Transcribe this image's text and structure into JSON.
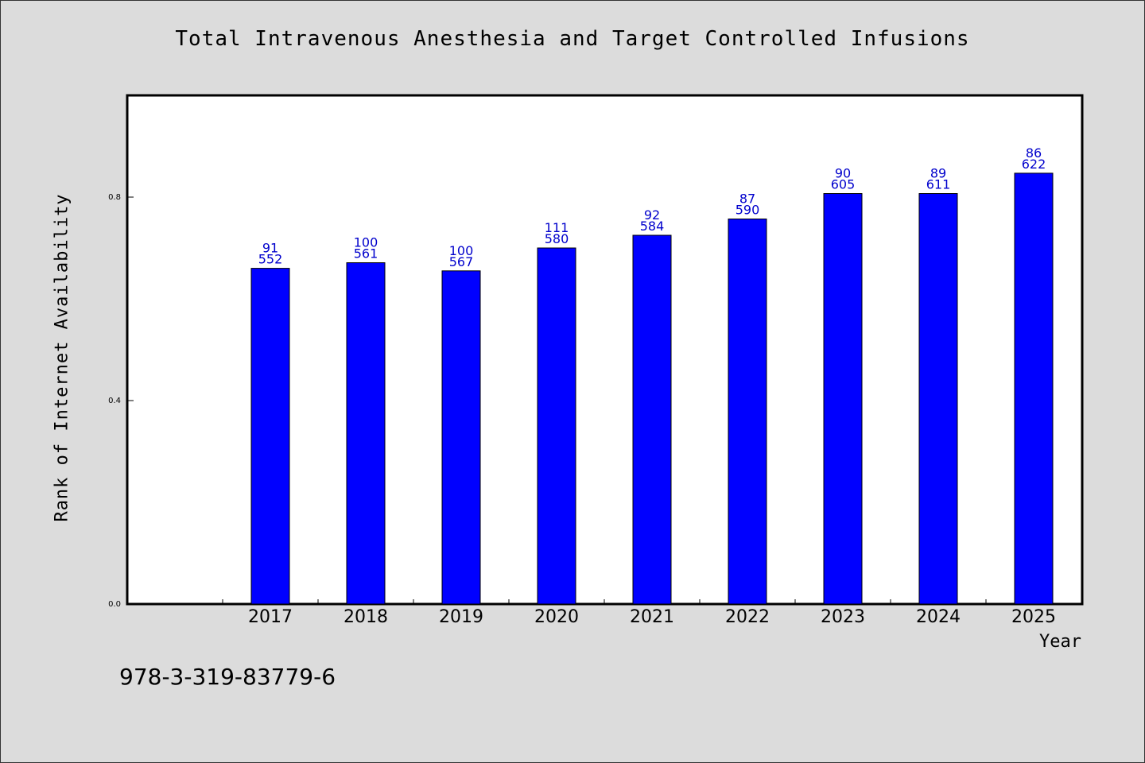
{
  "chart_data": {
    "type": "bar",
    "title": "Total Intravenous Anesthesia and Target Controlled Infusions",
    "xlabel": "Year",
    "ylabel": "Rank of Internet Availability",
    "categories": [
      "2017",
      "2018",
      "2019",
      "2020",
      "2021",
      "2022",
      "2023",
      "2024",
      "2025"
    ],
    "values": [
      0.66,
      0.671,
      0.655,
      0.7,
      0.725,
      0.757,
      0.807,
      0.807,
      0.847
    ],
    "annotations": [
      {
        "top": "91",
        "bottom": "552"
      },
      {
        "top": "100",
        "bottom": "561"
      },
      {
        "top": "100",
        "bottom": "567"
      },
      {
        "top": "111",
        "bottom": "580"
      },
      {
        "top": "92",
        "bottom": "584"
      },
      {
        "top": "87",
        "bottom": "590"
      },
      {
        "top": "90",
        "bottom": "605"
      },
      {
        "top": "89",
        "bottom": "611"
      },
      {
        "top": "86",
        "bottom": "622"
      }
    ],
    "yticks": [
      "0.0",
      "0.4",
      "0.8"
    ],
    "ylim": [
      0,
      1.0
    ],
    "bar_color": "#0000ff",
    "label_color": "#0000cc",
    "grid": false
  },
  "footer": {
    "isbn": "978-3-319-83779-6"
  }
}
